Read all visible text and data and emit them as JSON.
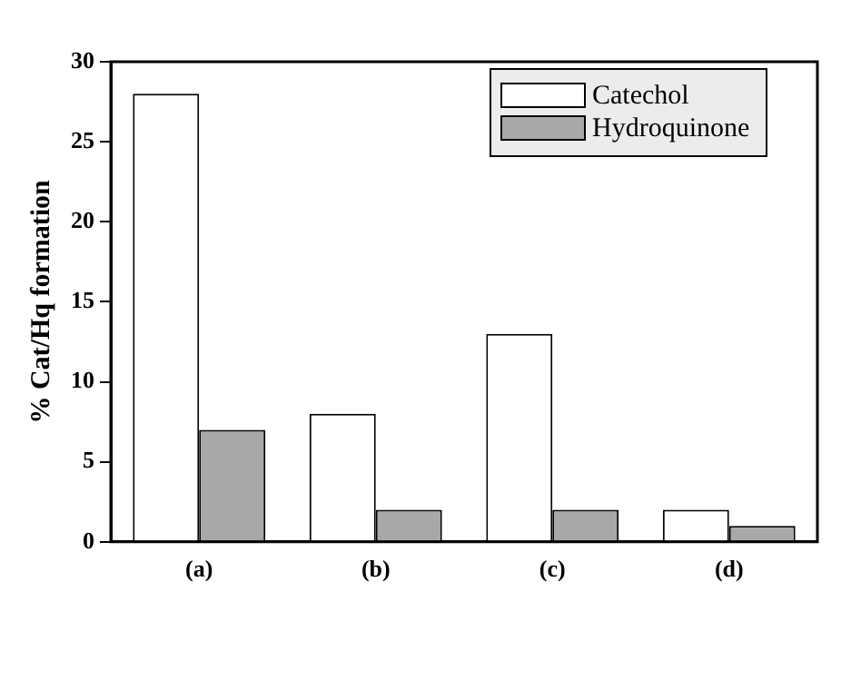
{
  "chart_data": {
    "type": "bar",
    "ylabel": "% Cat/Hq formation",
    "categories": [
      "(a)",
      "(b)",
      "(c)",
      "(d)"
    ],
    "series": [
      {
        "name": "Catechol",
        "color": "#ffffff",
        "values": [
          28,
          8,
          13,
          2
        ]
      },
      {
        "name": "Hydroquinone",
        "color": "#a8a8a8",
        "values": [
          7,
          2,
          2,
          1
        ]
      }
    ],
    "ylim": [
      0,
      30
    ],
    "yticks": [
      0,
      5,
      10,
      15,
      20,
      25,
      30
    ],
    "grid": false,
    "legend": "top right"
  }
}
